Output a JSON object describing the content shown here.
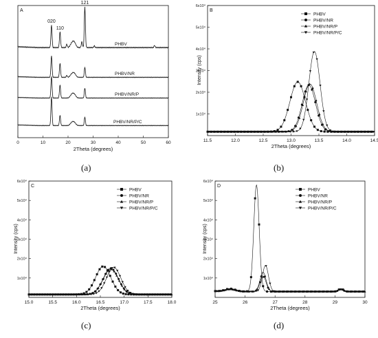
{
  "figure": {
    "captions": [
      "(a)",
      "(b)",
      "(c)",
      "(d)"
    ]
  },
  "chart_data": [
    {
      "panel": "A",
      "type": "line",
      "xlabel": "2Theta (degrees)",
      "ylabel": "",
      "xlim": [
        0,
        60
      ],
      "xticks": [
        0,
        10,
        20,
        30,
        40,
        50,
        60
      ],
      "peak_labels": [
        {
          "text": "020",
          "x": 13.4
        },
        {
          "text": "110",
          "x": 16.8
        },
        {
          "text": "121",
          "x": 26.7
        }
      ],
      "series": [
        {
          "name": "PHBV",
          "peaks": [
            [
              13.4,
              0.55
            ],
            [
              16.8,
              0.38
            ],
            [
              19.5,
              0.08
            ],
            [
              21.5,
              0.1
            ],
            [
              22.5,
              0.12
            ],
            [
              25.5,
              0.14
            ],
            [
              26.7,
              1.0
            ],
            [
              30.5,
              0.04
            ],
            [
              54.5,
              0.05
            ]
          ]
        },
        {
          "name": "PHBV/NR",
          "peaks": [
            [
              13.4,
              0.7
            ],
            [
              16.8,
              0.45
            ],
            [
              19.5,
              0.06
            ],
            [
              21.5,
              0.1
            ],
            [
              22.5,
              0.12
            ],
            [
              26.7,
              0.33
            ]
          ]
        },
        {
          "name": "PHBV/NR/P",
          "peaks": [
            [
              13.4,
              0.75
            ],
            [
              16.8,
              0.45
            ],
            [
              21.5,
              0.12
            ],
            [
              22.5,
              0.12
            ],
            [
              26.7,
              0.35
            ]
          ]
        },
        {
          "name": "PHBV/NR/P/C",
          "peaks": [
            [
              13.4,
              1.0
            ],
            [
              16.8,
              0.35
            ],
            [
              21.5,
              0.1
            ],
            [
              22.5,
              0.1
            ],
            [
              26.7,
              0.3
            ]
          ]
        }
      ]
    },
    {
      "panel": "B",
      "type": "line",
      "xlabel": "2Theta (degrees)",
      "ylabel": "Intensity (cps)",
      "xlim": [
        11.5,
        14.5
      ],
      "ylim": [
        0,
        60000
      ],
      "xticks": [
        11.5,
        12.0,
        12.5,
        13.0,
        13.5,
        14.0,
        14.5
      ],
      "yticks": [
        10000,
        20000,
        30000,
        40000,
        50000,
        60000
      ],
      "ytick_labels": [
        "1x10⁴",
        "2x10⁴",
        "3x10⁴",
        "4x10⁴",
        "5x10⁴",
        "6x10⁴"
      ],
      "legend_position": "top-right",
      "series": [
        {
          "name": "PHBV",
          "marker": "square",
          "baseline": 1800,
          "peaks": [
            [
              13.12,
              23000,
              0.14
            ]
          ]
        },
        {
          "name": "PHBV/NR",
          "marker": "circle",
          "baseline": 1800,
          "peaks": [
            [
              13.32,
              21500,
              0.12
            ]
          ]
        },
        {
          "name": "PHBV/NR/P",
          "marker": "triangle-up",
          "baseline": 1800,
          "peaks": [
            [
              13.34,
              22000,
              0.12
            ]
          ]
        },
        {
          "name": "PHBV/NR/P/C",
          "marker": "triangle-down",
          "baseline": 1800,
          "peaks": [
            [
              13.42,
              37000,
              0.1
            ]
          ]
        }
      ]
    },
    {
      "panel": "C",
      "type": "line",
      "xlabel": "2Theta (degrees)",
      "ylabel": "Intensity (cps)",
      "xlim": [
        15.0,
        18.0
      ],
      "ylim": [
        0,
        60000
      ],
      "xticks": [
        15.0,
        15.5,
        16.0,
        16.5,
        17.0,
        17.5,
        18.0
      ],
      "yticks": [
        10000,
        20000,
        30000,
        40000,
        50000,
        60000
      ],
      "ytick_labels": [
        "1x10⁴",
        "2x10⁴",
        "3x10⁴",
        "4x10⁴",
        "5x10⁴",
        "6x10⁴"
      ],
      "legend_position": "top-right",
      "series": [
        {
          "name": "PHBV",
          "marker": "square",
          "baseline": 1500,
          "peaks": [
            [
              16.56,
              14500,
              0.16
            ]
          ]
        },
        {
          "name": "PHBV/NR",
          "marker": "circle",
          "baseline": 1500,
          "peaks": [
            [
              16.72,
              13500,
              0.16
            ]
          ]
        },
        {
          "name": "PHBV/NR/P",
          "marker": "triangle-up",
          "baseline": 1500,
          "peaks": [
            [
              16.72,
              13000,
              0.16
            ]
          ]
        },
        {
          "name": "PHBV/NR/P/C",
          "marker": "triangle-down",
          "baseline": 1500,
          "peaks": [
            [
              16.78,
              14000,
              0.15
            ]
          ]
        }
      ]
    },
    {
      "panel": "D",
      "type": "line",
      "xlabel": "2Theta (degrees)",
      "ylabel": "Intensity (cps)",
      "xlim": [
        25,
        30
      ],
      "ylim": [
        0,
        60000
      ],
      "xticks": [
        25,
        26,
        27,
        28,
        29,
        30
      ],
      "yticks": [
        10000,
        20000,
        30000,
        40000,
        50000,
        60000
      ],
      "ytick_labels": [
        "1x10⁴",
        "2x10⁴",
        "3x10⁴",
        "4x10⁴",
        "5x10⁴",
        "6x10⁴"
      ],
      "legend_position": "top-right",
      "series": [
        {
          "name": "PHBV",
          "marker": "square",
          "baseline": 3000,
          "peaks": [
            [
              25.5,
              1500,
              0.18
            ],
            [
              26.38,
              55000,
              0.09
            ],
            [
              29.2,
              1500,
              0.08
            ]
          ]
        },
        {
          "name": "PHBV/NR",
          "marker": "circle",
          "baseline": 3000,
          "peaks": [
            [
              25.5,
              1200,
              0.18
            ],
            [
              26.6,
              8000,
              0.1
            ],
            [
              29.2,
              1200,
              0.08
            ]
          ]
        },
        {
          "name": "PHBV/NR/P",
          "marker": "triangle-up",
          "baseline": 3000,
          "peaks": [
            [
              25.5,
              1200,
              0.18
            ],
            [
              26.6,
              10000,
              0.1
            ],
            [
              29.2,
              1200,
              0.08
            ]
          ]
        },
        {
          "name": "PHBV/NR/P/C",
          "marker": "triangle-down",
          "baseline": 3000,
          "peaks": [
            [
              25.5,
              1000,
              0.18
            ],
            [
              26.68,
              13500,
              0.1
            ],
            [
              29.2,
              1000,
              0.08
            ]
          ]
        }
      ]
    }
  ]
}
